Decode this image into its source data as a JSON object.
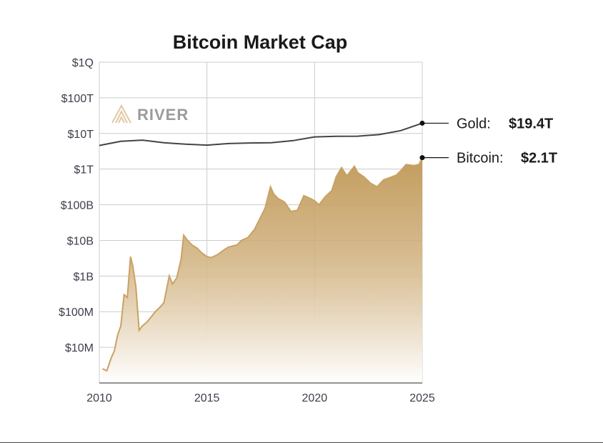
{
  "chart_data": {
    "type": "area",
    "title": "Bitcoin Market Cap",
    "xlabel": "",
    "ylabel": "",
    "scale": "log",
    "xlim": [
      2010,
      2025
    ],
    "ylim": [
      1000000,
      1000000000000000
    ],
    "x_ticks": [
      2010,
      2015,
      2020,
      2025
    ],
    "x_tick_labels": [
      "2010",
      "2015",
      "2020",
      "2025"
    ],
    "y_ticks": [
      10000000,
      100000000,
      1000000000,
      10000000000,
      100000000000,
      1000000000000,
      10000000000000,
      100000000000000,
      1000000000000000
    ],
    "y_tick_labels": [
      "$10M",
      "$100M",
      "$1B",
      "$10B",
      "$100B",
      "$1T",
      "$10T",
      "$100T",
      "$1Q"
    ],
    "grid": true,
    "brand": "RIVER",
    "colors": {
      "bitcoin_line": "#c9a263",
      "bitcoin_fill_top": "#c19a5a",
      "gold_line": "#444444",
      "grid": "#cccccc"
    },
    "series": [
      {
        "name": "Gold",
        "annotation_label": "Gold:",
        "annotation_value": "$19.4T",
        "points": [
          [
            2010,
            4600000000000.0
          ],
          [
            2011,
            6000000000000.0
          ],
          [
            2012,
            6500000000000.0
          ],
          [
            2013,
            5500000000000.0
          ],
          [
            2014,
            5000000000000.0
          ],
          [
            2015,
            4700000000000.0
          ],
          [
            2016,
            5200000000000.0
          ],
          [
            2017,
            5400000000000.0
          ],
          [
            2018,
            5500000000000.0
          ],
          [
            2019,
            6300000000000.0
          ],
          [
            2020,
            8000000000000.0
          ],
          [
            2021,
            8300000000000.0
          ],
          [
            2022,
            8400000000000.0
          ],
          [
            2023,
            9300000000000.0
          ],
          [
            2024,
            12000000000000.0
          ],
          [
            2025,
            19400000000000.0
          ]
        ]
      },
      {
        "name": "Bitcoin",
        "annotation_label": "Bitcoin:",
        "annotation_value": "$2.1T",
        "points": [
          [
            2010.15,
            2500000.0
          ],
          [
            2010.35,
            2200000.0
          ],
          [
            2010.55,
            5000000.0
          ],
          [
            2010.7,
            8000000.0
          ],
          [
            2010.85,
            22000000.0
          ],
          [
            2011.0,
            40000000.0
          ],
          [
            2011.15,
            300000000.0
          ],
          [
            2011.3,
            250000000.0
          ],
          [
            2011.45,
            3500000000.0
          ],
          [
            2011.55,
            2000000000.0
          ],
          [
            2011.7,
            500000000.0
          ],
          [
            2011.85,
            30000000.0
          ],
          [
            2012.0,
            40000000.0
          ],
          [
            2012.2,
            50000000.0
          ],
          [
            2012.4,
            70000000.0
          ],
          [
            2012.6,
            100000000.0
          ],
          [
            2012.8,
            130000000.0
          ],
          [
            2013.0,
            180000000.0
          ],
          [
            2013.25,
            1000000000.0
          ],
          [
            2013.4,
            600000000.0
          ],
          [
            2013.6,
            900000000.0
          ],
          [
            2013.8,
            3000000000.0
          ],
          [
            2013.92,
            14000000000.0
          ],
          [
            2014.1,
            10000000000.0
          ],
          [
            2014.3,
            7500000000.0
          ],
          [
            2014.55,
            6000000000.0
          ],
          [
            2014.75,
            4500000000.0
          ],
          [
            2015.0,
            3500000000.0
          ],
          [
            2015.2,
            3300000000.0
          ],
          [
            2015.5,
            4000000000.0
          ],
          [
            2015.8,
            5500000000.0
          ],
          [
            2016.0,
            6500000000.0
          ],
          [
            2016.4,
            7500000000.0
          ],
          [
            2016.6,
            10000000000.0
          ],
          [
            2016.9,
            12000000000.0
          ],
          [
            2017.2,
            20000000000.0
          ],
          [
            2017.45,
            40000000000.0
          ],
          [
            2017.7,
            80000000000.0
          ],
          [
            2017.95,
            320000000000.0
          ],
          [
            2018.1,
            200000000000.0
          ],
          [
            2018.3,
            150000000000.0
          ],
          [
            2018.6,
            120000000000.0
          ],
          [
            2018.9,
            65000000000.0
          ],
          [
            2019.2,
            70000000000.0
          ],
          [
            2019.5,
            180000000000.0
          ],
          [
            2019.8,
            150000000000.0
          ],
          [
            2020.0,
            130000000000.0
          ],
          [
            2020.2,
            100000000000.0
          ],
          [
            2020.5,
            170000000000.0
          ],
          [
            2020.8,
            250000000000.0
          ],
          [
            2021.0,
            600000000000.0
          ],
          [
            2021.25,
            1100000000000.0
          ],
          [
            2021.5,
            650000000000.0
          ],
          [
            2021.85,
            1200000000000.0
          ],
          [
            2022.0,
            800000000000.0
          ],
          [
            2022.3,
            600000000000.0
          ],
          [
            2022.6,
            400000000000.0
          ],
          [
            2022.9,
            320000000000.0
          ],
          [
            2023.2,
            500000000000.0
          ],
          [
            2023.5,
            580000000000.0
          ],
          [
            2023.8,
            680000000000.0
          ],
          [
            2024.0,
            900000000000.0
          ],
          [
            2024.25,
            1350000000000.0
          ],
          [
            2024.6,
            1250000000000.0
          ],
          [
            2024.85,
            1350000000000.0
          ],
          [
            2025.0,
            2100000000000.0
          ]
        ]
      }
    ]
  }
}
